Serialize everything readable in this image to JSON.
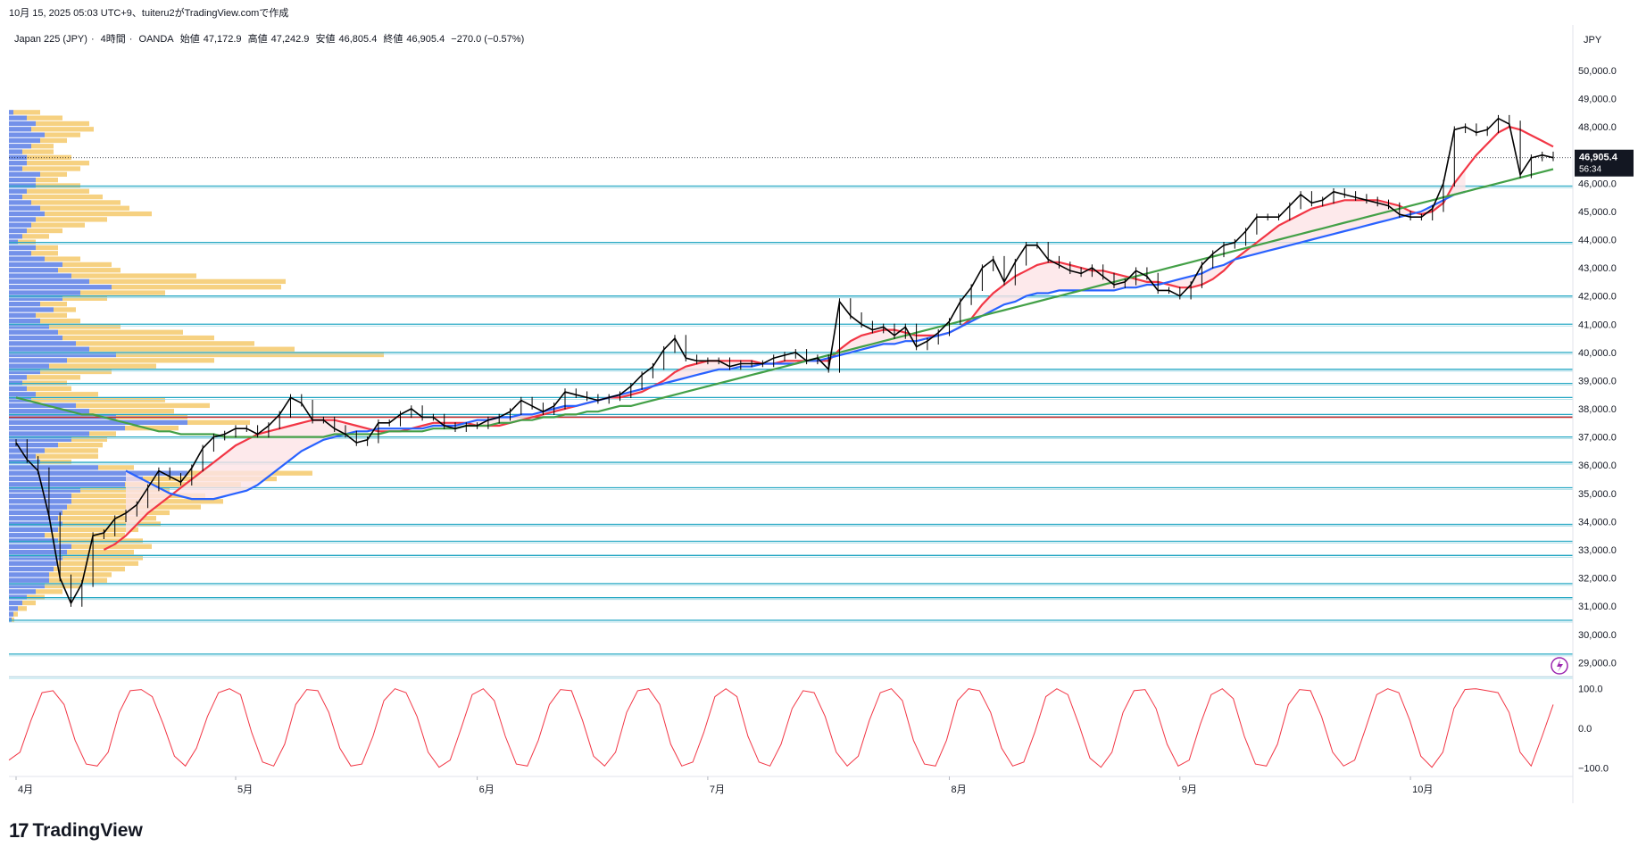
{
  "header": {
    "created_line": "10月 15, 2025 05:03 UTC+9、tuiteru2がTradingView.comで作成"
  },
  "symbol": {
    "name": "Japan 225 (JPY)",
    "interval": "4時間",
    "broker": "OANDA",
    "open_label": "始値",
    "open": "47,172.9",
    "high_label": "高値",
    "high": "47,242.9",
    "low_label": "安値",
    "low": "46,805.4",
    "close_label": "終値",
    "close": "46,905.4",
    "change": "−270.0 (−0.57%)"
  },
  "price_scale": {
    "currency": "JPY",
    "last_price": "46,905.4",
    "countdown": "56:34"
  },
  "branding": {
    "logo_text": "TradingView"
  },
  "colors": {
    "candle": "#000000",
    "sma_fast": "#f23645",
    "sma_mid": "#2962ff",
    "sma_slow": "#43a047",
    "band_fill": "#fce4e6",
    "hlines": "#26a8c4",
    "red_hline": "#c62828",
    "vp_up": "#5b7ee5",
    "vp_down": "#f5c96b",
    "oscillator": "#f23645"
  },
  "chart_data": {
    "type": "line",
    "y_ticks": [
      "50,000.0",
      "49,000.0",
      "48,000.0",
      "47,000.0",
      "46,000.0",
      "45,000.0",
      "44,000.0",
      "43,000.0",
      "42,000.0",
      "41,000.0",
      "40,000.0",
      "39,000.0",
      "38,000.0",
      "37,000.0",
      "36,000.0",
      "35,000.0",
      "34,000.0",
      "33,000.0",
      "32,000.0",
      "31,000.0",
      "30,000.0",
      "29,000.0"
    ],
    "y_tick_values": [
      50000,
      49000,
      48000,
      47000,
      46000,
      45000,
      44000,
      43000,
      42000,
      41000,
      40000,
      39000,
      38000,
      37000,
      36000,
      35000,
      34000,
      33000,
      32000,
      31000,
      30000,
      29000
    ],
    "ylim": [
      28600,
      50600
    ],
    "x_labels": [
      "4月",
      "5月",
      "6月",
      "7月",
      "8月",
      "9月",
      "10月"
    ],
    "x_label_index": [
      0,
      20,
      42,
      63,
      85,
      106,
      127
    ],
    "horizontal_levels": [
      45900,
      43900,
      42000,
      41000,
      40000,
      39400,
      38900,
      38400,
      37800,
      37000,
      36100,
      35200,
      33900,
      33300,
      32800,
      31800,
      31300,
      30500,
      29300,
      28500
    ],
    "red_level": 37700,
    "price": {
      "name": "Close",
      "values": [
        36800,
        36200,
        35800,
        34200,
        32000,
        31100,
        31800,
        33500,
        33600,
        34100,
        34300,
        34600,
        35200,
        35800,
        35600,
        35400,
        35900,
        36600,
        37000,
        37100,
        37300,
        37300,
        37100,
        37400,
        37800,
        38400,
        38200,
        37600,
        37600,
        37300,
        37100,
        36800,
        36900,
        37500,
        37500,
        37800,
        38000,
        37700,
        37700,
        37400,
        37300,
        37400,
        37400,
        37600,
        37700,
        37900,
        38300,
        38100,
        37900,
        38100,
        38600,
        38500,
        38400,
        38300,
        38400,
        38500,
        38800,
        39200,
        39500,
        40100,
        40500,
        39800,
        39700,
        39700,
        39700,
        39500,
        39600,
        39600,
        39600,
        39800,
        39900,
        40000,
        39700,
        39800,
        39400,
        41800,
        41300,
        41000,
        40800,
        40900,
        40600,
        40900,
        40200,
        40400,
        40700,
        41100,
        41800,
        42300,
        43000,
        43300,
        42500,
        43200,
        43800,
        43800,
        43300,
        43100,
        42900,
        42800,
        43000,
        42700,
        42400,
        42500,
        42900,
        42700,
        42200,
        42200,
        42000,
        42400,
        43100,
        43500,
        43800,
        43900,
        44300,
        44800,
        44800,
        44800,
        45200,
        45600,
        45300,
        45400,
        45700,
        45600,
        45500,
        45400,
        45300,
        45200,
        44900,
        44800,
        44800,
        45100,
        46000,
        47900,
        48000,
        47800,
        47900,
        48300,
        48100,
        46300,
        46900,
        47000,
        46905
      ]
    },
    "series": [
      {
        "name": "SMA fast",
        "values": [
          null,
          null,
          null,
          null,
          null,
          null,
          null,
          null,
          33000,
          33200,
          33500,
          33900,
          34300,
          34600,
          34900,
          35200,
          35500,
          35800,
          36100,
          36400,
          36700,
          36900,
          37100,
          37200,
          37300,
          37400,
          37500,
          37600,
          37600,
          37600,
          37500,
          37400,
          37300,
          37200,
          37200,
          37200,
          37300,
          37400,
          37500,
          37500,
          37500,
          37500,
          37400,
          37400,
          37400,
          37500,
          37600,
          37700,
          37800,
          37900,
          38000,
          38100,
          38200,
          38300,
          38400,
          38400,
          38500,
          38600,
          38800,
          39000,
          39300,
          39500,
          39600,
          39700,
          39700,
          39700,
          39700,
          39700,
          39600,
          39600,
          39700,
          39700,
          39700,
          39700,
          39700,
          40100,
          40400,
          40600,
          40700,
          40800,
          40800,
          40700,
          40600,
          40600,
          40600,
          40700,
          40900,
          41200,
          41700,
          42100,
          42400,
          42700,
          42900,
          43100,
          43200,
          43200,
          43100,
          43000,
          42900,
          42900,
          42800,
          42700,
          42600,
          42500,
          42500,
          42400,
          42300,
          42300,
          42400,
          42600,
          42900,
          43300,
          43600,
          43900,
          44200,
          44500,
          44700,
          44900,
          45100,
          45200,
          45300,
          45400,
          45400,
          45400,
          45400,
          45300,
          45200,
          45000,
          44900,
          45000,
          45300,
          46000,
          46500,
          47000,
          47400,
          47800,
          48000,
          47900,
          47700,
          47500,
          47300
        ]
      },
      {
        "name": "SMA mid",
        "values": [
          null,
          null,
          null,
          null,
          null,
          null,
          null,
          null,
          null,
          null,
          35800,
          35600,
          35400,
          35200,
          35000,
          34900,
          34800,
          34800,
          34800,
          34900,
          35000,
          35100,
          35300,
          35600,
          35900,
          36200,
          36500,
          36700,
          36900,
          37000,
          37100,
          37200,
          37200,
          37300,
          37300,
          37300,
          37300,
          37300,
          37400,
          37400,
          37400,
          37500,
          37600,
          37600,
          37700,
          37700,
          37800,
          37800,
          37900,
          38000,
          38100,
          38100,
          38200,
          38300,
          38400,
          38500,
          38600,
          38700,
          38800,
          38900,
          39000,
          39100,
          39200,
          39300,
          39400,
          39400,
          39500,
          39500,
          39600,
          39600,
          39600,
          39600,
          39700,
          39700,
          39800,
          39900,
          40000,
          40100,
          40200,
          40300,
          40300,
          40400,
          40400,
          40500,
          40600,
          40700,
          40900,
          41100,
          41300,
          41500,
          41700,
          41800,
          42000,
          42100,
          42100,
          42200,
          42200,
          42200,
          42200,
          42200,
          42200,
          42300,
          42300,
          42400,
          42400,
          42500,
          42600,
          42700,
          42800,
          43000,
          43100,
          43300,
          43400,
          43500,
          43600,
          43700,
          43800,
          43900,
          44000,
          44100,
          44200,
          44300,
          44400,
          44500,
          44600,
          44700,
          44800,
          44900,
          45000,
          45200,
          45400,
          45600,
          45700
        ]
      },
      {
        "name": "SMA slow",
        "values": [
          38400,
          38300,
          38200,
          38100,
          38000,
          37900,
          37800,
          37800,
          37700,
          37600,
          37500,
          37400,
          37300,
          37200,
          37200,
          37100,
          37100,
          37100,
          37100,
          37000,
          37000,
          37000,
          37000,
          37000,
          37000,
          37000,
          37000,
          37000,
          37000,
          37100,
          37100,
          37100,
          37100,
          37100,
          37200,
          37200,
          37200,
          37200,
          37300,
          37300,
          37300,
          37400,
          37400,
          37400,
          37500,
          37500,
          37600,
          37600,
          37700,
          37700,
          37800,
          37800,
          37900,
          37900,
          38000,
          38100,
          38100,
          38200,
          38300,
          38400,
          38500,
          38600,
          38700,
          38800,
          38900,
          39000,
          39100,
          39200,
          39300,
          39400,
          39500,
          39600,
          39700,
          39800,
          39900,
          40000,
          40100,
          40200,
          40300,
          40400,
          40500,
          40600,
          40700,
          40800,
          40900,
          41000,
          41100,
          41200,
          41300,
          41400,
          41500,
          41600,
          41700,
          41800,
          41900,
          42000,
          42100,
          42200,
          42300,
          42400,
          42500,
          42600,
          42700,
          42800,
          42900,
          43000,
          43100,
          43200,
          43300,
          43400,
          43500,
          43600,
          43700,
          43800,
          43900,
          44000,
          44100,
          44200,
          44300,
          44400,
          44500,
          44600,
          44700,
          44800,
          44900,
          45000,
          45100,
          45200,
          45300,
          45400,
          45500,
          45600,
          45700,
          45800,
          45900,
          46000,
          46100,
          46200,
          46300,
          46400,
          46500
        ]
      }
    ],
    "oscillator": {
      "name": "Oscillator",
      "y_ticks": [
        "100.0",
        "0.0",
        "−100.0"
      ],
      "y_tick_values": [
        100,
        0,
        -100
      ],
      "ylim": [
        -110,
        115
      ],
      "values": [
        -80,
        -60,
        20,
        90,
        95,
        60,
        -30,
        -90,
        -95,
        -60,
        40,
        95,
        98,
        80,
        10,
        -70,
        -95,
        -50,
        30,
        90,
        100,
        85,
        -10,
        -85,
        -95,
        -40,
        60,
        98,
        95,
        40,
        -50,
        -95,
        -90,
        -20,
        70,
        100,
        90,
        30,
        -60,
        -98,
        -80,
        0,
        85,
        100,
        70,
        -20,
        -90,
        -95,
        -30,
        60,
        98,
        95,
        20,
        -70,
        -95,
        -60,
        40,
        95,
        100,
        60,
        -40,
        -95,
        -85,
        -10,
        80,
        100,
        80,
        -20,
        -85,
        -95,
        -40,
        50,
        95,
        90,
        30,
        -60,
        -95,
        -70,
        20,
        90,
        100,
        70,
        -30,
        -90,
        -95,
        -30,
        70,
        100,
        95,
        40,
        -50,
        -95,
        -85,
        -10,
        80,
        100,
        85,
        10,
        -75,
        -98,
        -60,
        40,
        95,
        98,
        50,
        -40,
        -95,
        -80,
        10,
        85,
        100,
        75,
        -20,
        -90,
        -95,
        -40,
        60,
        98,
        95,
        30,
        -60,
        -95,
        -80,
        0,
        85,
        100,
        90,
        20,
        -70,
        -98,
        -60,
        50,
        98,
        100,
        95,
        90,
        40,
        -60,
        -95,
        -20,
        60
      ]
    },
    "volume_profile": {
      "price_bins": [
        48600,
        48400,
        48200,
        48000,
        47800,
        47600,
        47400,
        47200,
        47000,
        46800,
        46600,
        46400,
        46200,
        46000,
        45800,
        45600,
        45400,
        45200,
        45000,
        44800,
        44600,
        44400,
        44200,
        44000,
        43800,
        43600,
        43400,
        43200,
        43000,
        42800,
        42600,
        42400,
        42200,
        42000,
        41800,
        41600,
        41400,
        41200,
        41000,
        40800,
        40600,
        40400,
        40200,
        40000,
        39800,
        39600,
        39400,
        39200,
        39000,
        38800,
        38600,
        38400,
        38200,
        38000,
        37800,
        37600,
        37400,
        37200,
        37000,
        36800,
        36600,
        36400,
        36200,
        36000,
        35800,
        35600,
        35400,
        35200,
        35000,
        34800,
        34600,
        34400,
        34200,
        34000,
        33800,
        33600,
        33400,
        33200,
        33000,
        32800,
        32600,
        32400,
        32200,
        32000,
        31800,
        31600,
        31400,
        31200,
        31000,
        30800,
        30600
      ],
      "up": [
        5,
        20,
        30,
        25,
        40,
        35,
        25,
        15,
        20,
        20,
        15,
        35,
        30,
        30,
        20,
        15,
        25,
        35,
        40,
        30,
        25,
        20,
        15,
        10,
        30,
        25,
        40,
        60,
        55,
        70,
        90,
        115,
        80,
        60,
        35,
        50,
        30,
        35,
        45,
        55,
        60,
        75,
        90,
        120,
        65,
        45,
        35,
        20,
        15,
        20,
        30,
        25,
        75,
        90,
        120,
        200,
        130,
        90,
        70,
        55,
        40,
        30,
        35,
        100,
        200,
        150,
        130,
        80,
        70,
        70,
        65,
        60,
        55,
        60,
        55,
        40,
        55,
        70,
        65,
        60,
        55,
        50,
        45,
        45,
        40,
        30,
        20,
        15,
        10,
        5,
        3
      ],
      "down": [
        30,
        40,
        60,
        70,
        40,
        30,
        25,
        35,
        50,
        70,
        65,
        30,
        25,
        50,
        70,
        90,
        100,
        100,
        120,
        80,
        60,
        40,
        30,
        20,
        25,
        30,
        40,
        55,
        70,
        140,
        220,
        190,
        95,
        50,
        30,
        25,
        35,
        45,
        80,
        140,
        170,
        200,
        230,
        300,
        165,
        120,
        80,
        60,
        50,
        50,
        70,
        150,
        150,
        95,
        80,
        70,
        60,
        30,
        40,
        50,
        60,
        70,
        35,
        40,
        140,
        150,
        130,
        100,
        150,
        170,
        150,
        120,
        110,
        110,
        90,
        90,
        95,
        90,
        75,
        90,
        90,
        80,
        70,
        65,
        40,
        30,
        20,
        15,
        10,
        5,
        3
      ]
    }
  }
}
